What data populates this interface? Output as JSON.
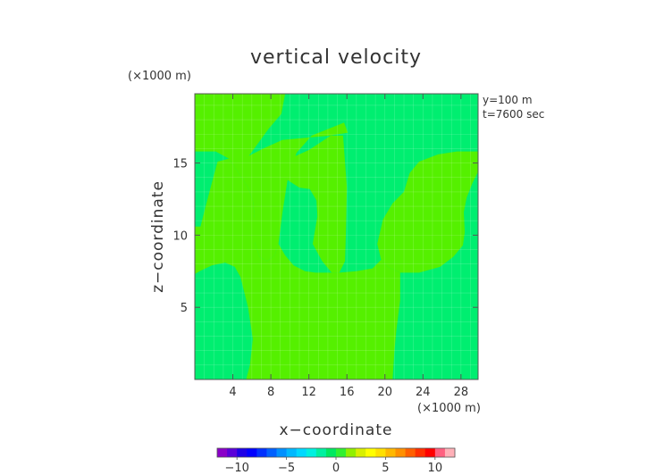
{
  "chart_data": {
    "type": "heatmap",
    "title": "vertical velocity",
    "xlabel": "x−coordinate",
    "ylabel": "z−coordinate",
    "x_unit": "(×1000 m)",
    "y_unit": "(×1000 m)",
    "annotations": [
      "y=100 m",
      "t=7600 sec"
    ],
    "xlim": [
      0,
      29.8
    ],
    "ylim": [
      0,
      19.8
    ],
    "x_ticks": [
      4,
      8,
      12,
      16,
      20,
      24,
      28
    ],
    "y_ticks": [
      5,
      10,
      15
    ],
    "colorbar": {
      "range": [
        -12,
        12
      ],
      "ticks": [
        -10,
        -5,
        0,
        5,
        10
      ],
      "tick_labels": [
        "−10",
        "−5",
        "0",
        "5",
        "10"
      ],
      "colors": [
        "#8a00c8",
        "#5a00d8",
        "#1e00e6",
        "#0000ff",
        "#0030ff",
        "#0060ff",
        "#0090ff",
        "#00b8ff",
        "#00d8ff",
        "#00f0e0",
        "#00f0a0",
        "#00e860",
        "#30f030",
        "#90f000",
        "#d8f000",
        "#ffff00",
        "#ffe000",
        "#ffb800",
        "#ff9000",
        "#ff6000",
        "#ff3000",
        "#ff0000",
        "#ff6080",
        "#ffb0b8"
      ]
    },
    "levels": {
      "background": "#00ee70",
      "band": "#55f000"
    },
    "regions": [
      {
        "level": "band",
        "points": [
          [
            0,
            19.8
          ],
          [
            0,
            15.8
          ],
          [
            2.2,
            15.8
          ],
          [
            3.6,
            15.3
          ],
          [
            4.8,
            14.1
          ],
          [
            5.6,
            13.3
          ],
          [
            6.1,
            12.4
          ],
          [
            6.3,
            11.2
          ],
          [
            6.3,
            9.5
          ],
          [
            6.8,
            8.5
          ],
          [
            7.6,
            8.2
          ],
          [
            8.4,
            8.6
          ],
          [
            8.8,
            9.4
          ],
          [
            9.2,
            11.5
          ],
          [
            9.8,
            14.0
          ],
          [
            10.7,
            15.7
          ],
          [
            12.3,
            16.9
          ],
          [
            15.7,
            17.8
          ],
          [
            16.1,
            17.1
          ],
          [
            14.2,
            16.9
          ],
          [
            9.2,
            16.6
          ],
          [
            7.2,
            16.0
          ],
          [
            5.7,
            15.5
          ],
          [
            7.8,
            17.4
          ],
          [
            9.1,
            18.4
          ],
          [
            9.5,
            19.8
          ]
        ]
      },
      {
        "level": "band",
        "points": [
          [
            9.1,
            14.1
          ],
          [
            11.0,
            13.3
          ],
          [
            12.1,
            13.2
          ],
          [
            12.8,
            12.4
          ],
          [
            12.9,
            11.3
          ],
          [
            12.4,
            9.4
          ],
          [
            13.4,
            8.2
          ],
          [
            14.4,
            7.4
          ],
          [
            15.2,
            7.4
          ],
          [
            15.8,
            8.2
          ],
          [
            15.9,
            10.2
          ],
          [
            16.0,
            13.3
          ],
          [
            15.6,
            16.9
          ],
          [
            14.3,
            16.9
          ],
          [
            12.0,
            15.9
          ],
          [
            10.3,
            15.4
          ]
        ]
      },
      {
        "level": "band",
        "points": [
          [
            19.2,
            9.4
          ],
          [
            19.6,
            8.3
          ],
          [
            20.3,
            7.8
          ],
          [
            21.6,
            7.4
          ],
          [
            23.6,
            7.4
          ],
          [
            25.8,
            7.8
          ],
          [
            27.2,
            8.5
          ],
          [
            28.2,
            9.3
          ],
          [
            28.4,
            10.2
          ],
          [
            28.3,
            11.6
          ],
          [
            28.6,
            12.6
          ],
          [
            29.2,
            13.6
          ],
          [
            29.8,
            14.4
          ],
          [
            29.8,
            15.8
          ],
          [
            27.6,
            15.8
          ],
          [
            25.6,
            15.6
          ],
          [
            23.6,
            15.1
          ],
          [
            22.6,
            14.3
          ],
          [
            22.0,
            13.0
          ],
          [
            20.8,
            12.2
          ],
          [
            19.8,
            11.1
          ]
        ]
      },
      {
        "level": "band",
        "points": [
          [
            5.4,
            0
          ],
          [
            5.8,
            1.0
          ],
          [
            6.1,
            2.8
          ],
          [
            5.6,
            5.0
          ],
          [
            4.8,
            7.1
          ],
          [
            4.2,
            7.8
          ],
          [
            3.2,
            8.1
          ],
          [
            1.8,
            7.9
          ],
          [
            0.5,
            7.5
          ],
          [
            0,
            7.3
          ],
          [
            0,
            10.6
          ],
          [
            0.6,
            10.6
          ],
          [
            1.1,
            11.9
          ],
          [
            1.7,
            13.4
          ],
          [
            2.4,
            15.1
          ],
          [
            3.6,
            15.3
          ],
          [
            4.8,
            14.1
          ],
          [
            5.6,
            13.3
          ],
          [
            6.1,
            12.4
          ],
          [
            6.3,
            11.2
          ],
          [
            6.3,
            9.5
          ],
          [
            6.8,
            8.5
          ],
          [
            7.6,
            8.2
          ],
          [
            8.4,
            8.6
          ],
          [
            8.8,
            9.4
          ],
          [
            9.5,
            8.6
          ],
          [
            10.4,
            7.9
          ],
          [
            11.6,
            7.5
          ],
          [
            12.7,
            7.4
          ],
          [
            14.4,
            7.4
          ],
          [
            15.2,
            7.4
          ],
          [
            17.0,
            7.5
          ],
          [
            18.7,
            7.7
          ],
          [
            19.6,
            8.3
          ],
          [
            20.3,
            7.8
          ],
          [
            21.6,
            7.4
          ],
          [
            21.6,
            5.5
          ],
          [
            21.2,
            3.4
          ],
          [
            21.0,
            2.0
          ],
          [
            20.8,
            0
          ]
        ]
      }
    ]
  }
}
